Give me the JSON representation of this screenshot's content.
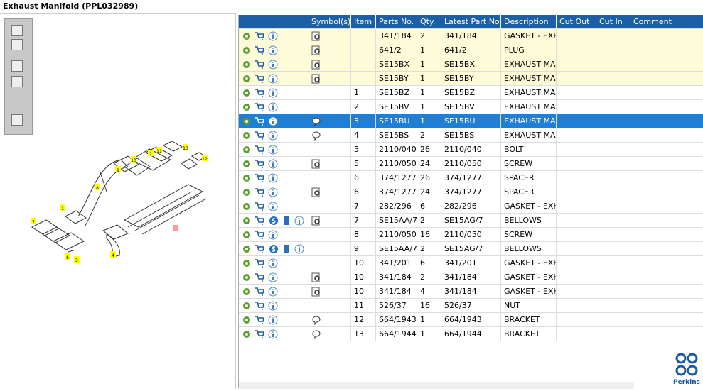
{
  "header": {
    "title": "Exhaust Manifold (PPL032989)"
  },
  "diagram": {
    "callouts": [
      "7",
      "1",
      "8",
      "9",
      "10",
      "2",
      "11",
      "13",
      "12",
      "4",
      "6",
      "5",
      "3"
    ]
  },
  "table": {
    "columns": [
      "Symbol(s)",
      "Item",
      "Parts No.",
      "Qty.",
      "Latest Part No.",
      "Description",
      "Cut Out",
      "Cut In",
      "Comment"
    ],
    "rows": [
      [
        null,
        "341/184",
        2,
        "341/184",
        "GASKET - EXHA"
      ],
      [
        null,
        "641/2",
        1,
        "641/2",
        "PLUG"
      ],
      [
        null,
        "SE15BX",
        1,
        "SE15BX",
        "EXHAUST MAN"
      ],
      [
        null,
        "SE15BY",
        1,
        "SE15BY",
        "EXHAUST MAN"
      ],
      [
        1,
        "SE15BZ",
        1,
        "SE15BZ",
        "EXHAUST MAN"
      ],
      [
        2,
        "SE15BV",
        1,
        "SE15BV",
        "EXHAUST MAN"
      ],
      [
        3,
        "SE15BU",
        1,
        "SE15BU",
        "EXHAUST MAN"
      ],
      [
        4,
        "SE15BS",
        2,
        "SE15BS",
        "EXHAUST MAN"
      ],
      [
        5,
        "2110/040",
        26,
        "2110/040",
        "BOLT"
      ],
      [
        5,
        "2110/050",
        24,
        "2110/050",
        "SCREW"
      ],
      [
        6,
        "374/1277",
        26,
        "374/1277",
        "SPACER"
      ],
      [
        6,
        "374/1277",
        24,
        "374/1277",
        "SPACER"
      ],
      [
        7,
        "282/296",
        6,
        "282/296",
        "GASKET - EXHA"
      ],
      [
        7,
        "SE15AA/7",
        2,
        "SE15AG/7",
        "BELLOWS"
      ],
      [
        8,
        "2110/050",
        16,
        "2110/050",
        "SCREW"
      ],
      [
        9,
        "SE15AA/7",
        2,
        "SE15AG/7",
        "BELLOWS"
      ],
      [
        10,
        "341/201",
        6,
        "341/201",
        "GASKET - EXHA"
      ],
      [
        10,
        "341/184",
        2,
        "341/184",
        "GASKET - EXHA"
      ],
      [
        10,
        "341/184",
        4,
        "341/184",
        "GASKET - EXHA"
      ],
      [
        11,
        "526/37",
        16,
        "526/37",
        "NUT"
      ],
      [
        12,
        "664/1943",
        1,
        "664/1943",
        "BRACKET"
      ],
      [
        13,
        "664/1944",
        1,
        "664/1944",
        "BRACKET"
      ]
    ]
  },
  "logo": "Perkins"
}
